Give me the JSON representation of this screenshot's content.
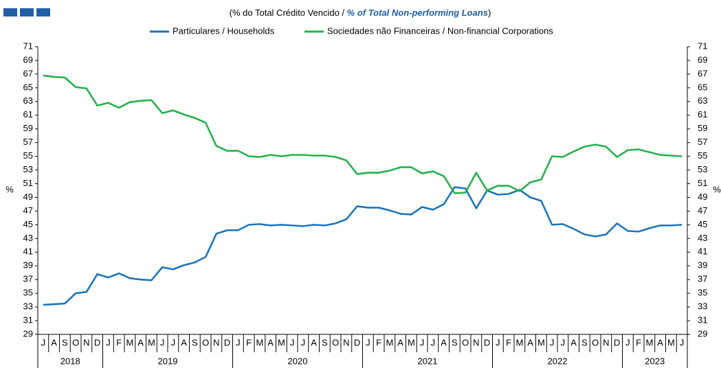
{
  "chart_data": {
    "type": "line",
    "title_parts": [
      "(% do Total  Crédito Vencido / ",
      "% of Total Non-performing Loans",
      ")"
    ],
    "y_label": "%",
    "y2_label": "%",
    "categories": [
      "J",
      "A",
      "S",
      "O",
      "N",
      "D",
      "J",
      "F",
      "M",
      "A",
      "M",
      "J",
      "J",
      "A",
      "S",
      "O",
      "N",
      "D",
      "J",
      "F",
      "M",
      "A",
      "M",
      "J",
      "J",
      "A",
      "S",
      "O",
      "N",
      "D",
      "J",
      "F",
      "M",
      "A",
      "M",
      "J",
      "J",
      "A",
      "S",
      "O",
      "N",
      "D",
      "J",
      "F",
      "M",
      "A",
      "M",
      "J",
      "J",
      "A",
      "S",
      "O",
      "N",
      "D",
      "J",
      "F",
      "M",
      "A",
      "M",
      "J"
    ],
    "years": [
      "2018",
      "2019",
      "2020",
      "2021",
      "2022",
      "2023"
    ],
    "series": [
      {
        "name": "Particulares / Households",
        "color": "#1b75bc",
        "values": [
          33.3,
          33.4,
          33.5,
          35.0,
          35.2,
          37.8,
          37.3,
          37.9,
          37.2,
          37.0,
          36.9,
          38.8,
          38.5,
          39.1,
          39.5,
          40.3,
          43.7,
          44.2,
          44.2,
          45.0,
          45.1,
          44.9,
          45.0,
          44.9,
          44.8,
          45.0,
          44.9,
          45.2,
          45.8,
          47.7,
          47.5,
          47.5,
          47.1,
          46.6,
          46.5,
          47.6,
          47.2,
          48.0,
          50.5,
          50.3,
          47.4,
          50.0,
          49.4,
          49.5,
          50.1,
          49.0,
          48.5,
          45.0,
          45.1,
          44.4,
          43.6,
          43.3,
          43.6,
          45.2,
          44.1,
          44.0,
          44.5,
          44.9,
          44.9,
          45.0
        ]
      },
      {
        "name": "Sociedades não Financeiras / Non-financial Corporations",
        "color": "#22b24c",
        "values": [
          66.8,
          66.6,
          66.5,
          65.1,
          64.9,
          62.4,
          62.8,
          62.1,
          62.9,
          63.1,
          63.2,
          61.3,
          61.7,
          61.1,
          60.6,
          59.9,
          56.5,
          55.8,
          55.8,
          55.0,
          54.9,
          55.2,
          55.0,
          55.2,
          55.2,
          55.1,
          55.1,
          54.9,
          54.4,
          52.4,
          52.6,
          52.6,
          52.9,
          53.4,
          53.4,
          52.5,
          52.8,
          52.1,
          49.6,
          49.7,
          52.6,
          50.0,
          50.7,
          50.7,
          49.9,
          51.2,
          51.6,
          55.0,
          54.9,
          55.7,
          56.4,
          56.7,
          56.4,
          54.9,
          55.9,
          56.0,
          55.6,
          55.2,
          55.1,
          55.0
        ]
      }
    ],
    "ylim": [
      29,
      71
    ],
    "yticks": [
      29,
      31,
      33,
      35,
      37,
      39,
      41,
      43,
      45,
      47,
      49,
      51,
      53,
      55,
      57,
      59,
      61,
      63,
      65,
      67,
      69,
      71
    ],
    "y2lim": [
      29,
      71
    ],
    "y2ticks": [
      29,
      31,
      33,
      35,
      37,
      39,
      41,
      43,
      45,
      47,
      49,
      51,
      53,
      55,
      57,
      59,
      61,
      63,
      65,
      67,
      69,
      71
    ],
    "grid": false
  }
}
